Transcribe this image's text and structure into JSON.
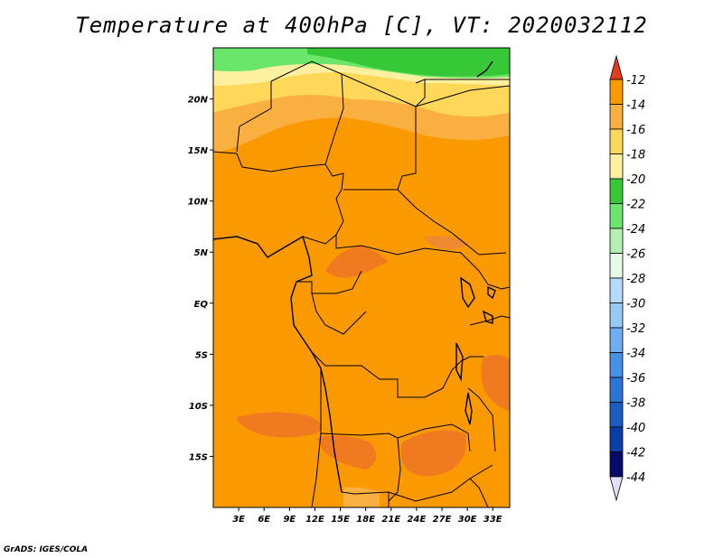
{
  "title": "Temperature at 400hPa [C], VT: 2020032112",
  "credit": "GrADS: IGES/COLA",
  "map": {
    "lat_ticks": [
      {
        "value": 20,
        "label": "20N"
      },
      {
        "value": 15,
        "label": "15N"
      },
      {
        "value": 10,
        "label": "10N"
      },
      {
        "value": 5,
        "label": "5N"
      },
      {
        "value": 0,
        "label": "EQ"
      },
      {
        "value": -5,
        "label": "5S"
      },
      {
        "value": -10,
        "label": "10S"
      },
      {
        "value": -15,
        "label": "15S"
      }
    ],
    "lon_ticks": [
      {
        "value": 3,
        "label": "3E"
      },
      {
        "value": 6,
        "label": "6E"
      },
      {
        "value": 9,
        "label": "9E"
      },
      {
        "value": 12,
        "label": "12E"
      },
      {
        "value": 15,
        "label": "15E"
      },
      {
        "value": 18,
        "label": "18E"
      },
      {
        "value": 21,
        "label": "21E"
      },
      {
        "value": 24,
        "label": "24E"
      },
      {
        "value": 27,
        "label": "27E"
      },
      {
        "value": 30,
        "label": "30E"
      },
      {
        "value": 33,
        "label": "33E"
      }
    ],
    "lon_range": [
      0,
      35
    ],
    "lat_range": [
      -20,
      25
    ]
  },
  "colorbar": {
    "levels": [
      "-12",
      "-14",
      "-16",
      "-18",
      "-20",
      "-22",
      "-24",
      "-26",
      "-28",
      "-30",
      "-32",
      "-34",
      "-36",
      "-38",
      "-40",
      "-42",
      "-44"
    ],
    "colors": [
      "#f04a10",
      "#fa9a00",
      "#fab040",
      "#ffd85a",
      "#fff0a0",
      "#36c836",
      "#6ae66a",
      "#b4f0b4",
      "#e6fae6",
      "#b4dcfa",
      "#96c8f8",
      "#6eaef0",
      "#4690e6",
      "#2a76d8",
      "#1a5ec4",
      "#0a3ea8",
      "#040c6a"
    ],
    "top_arrow_color": "#e63c1e",
    "bottom_arrow_color": "#e0e0f8"
  }
}
